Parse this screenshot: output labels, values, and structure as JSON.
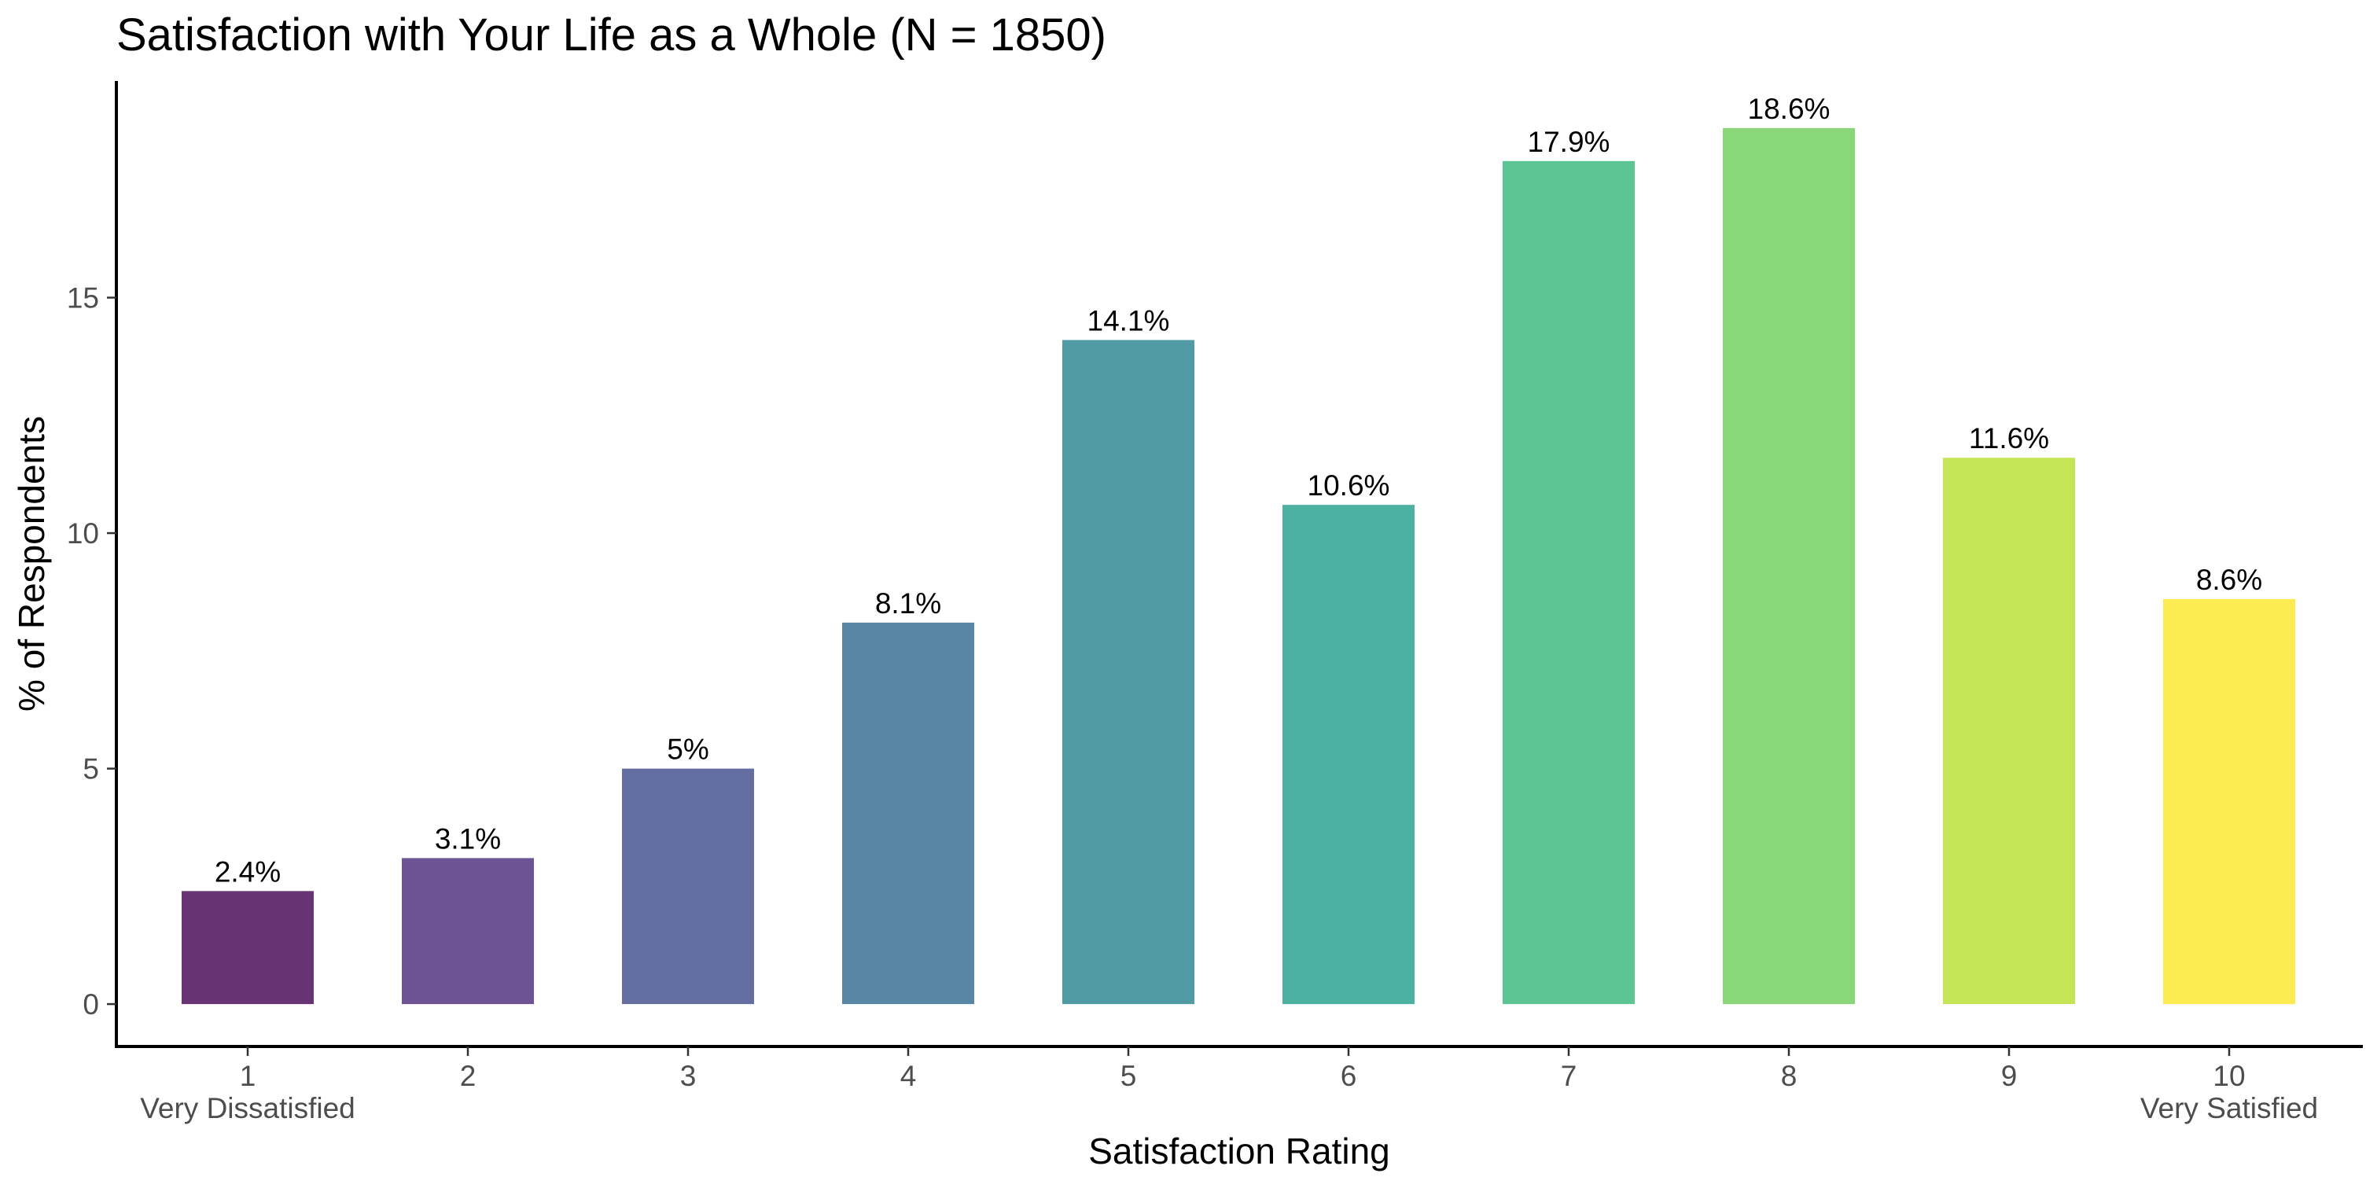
{
  "chart_data": {
    "type": "bar",
    "title": "Satisfaction with Your Life as a Whole (N = 1850)",
    "xlabel": "Satisfaction Rating",
    "ylabel": "% of Respondents",
    "categories": [
      "1",
      "2",
      "3",
      "4",
      "5",
      "6",
      "7",
      "8",
      "9",
      "10"
    ],
    "category_sublabels": [
      "Very Dissatisfied",
      "",
      "",
      "",
      "",
      "",
      "",
      "",
      "",
      "Very Satisfied"
    ],
    "values": [
      2.4,
      3.1,
      5.0,
      8.1,
      14.1,
      10.6,
      17.9,
      18.6,
      11.6,
      8.6
    ],
    "data_labels": [
      "2.4%",
      "3.1%",
      "5%",
      "8.1%",
      "14.1%",
      "10.6%",
      "17.9%",
      "18.6%",
      "11.6%",
      "8.6%"
    ],
    "colors": [
      "#440154",
      "#482878",
      "#3E4A89",
      "#31688E",
      "#26828E",
      "#1F9E89",
      "#35B779",
      "#6DCD59",
      "#B4DE2C",
      "#FDE725"
    ],
    "bar_opacity": 0.8,
    "ylim": [
      -0.9,
      19.6
    ],
    "yticks": [
      0,
      5,
      10,
      15
    ],
    "ytick_labels": [
      "0",
      "5",
      "10",
      "15"
    ],
    "grid": false,
    "legend": "none"
  }
}
